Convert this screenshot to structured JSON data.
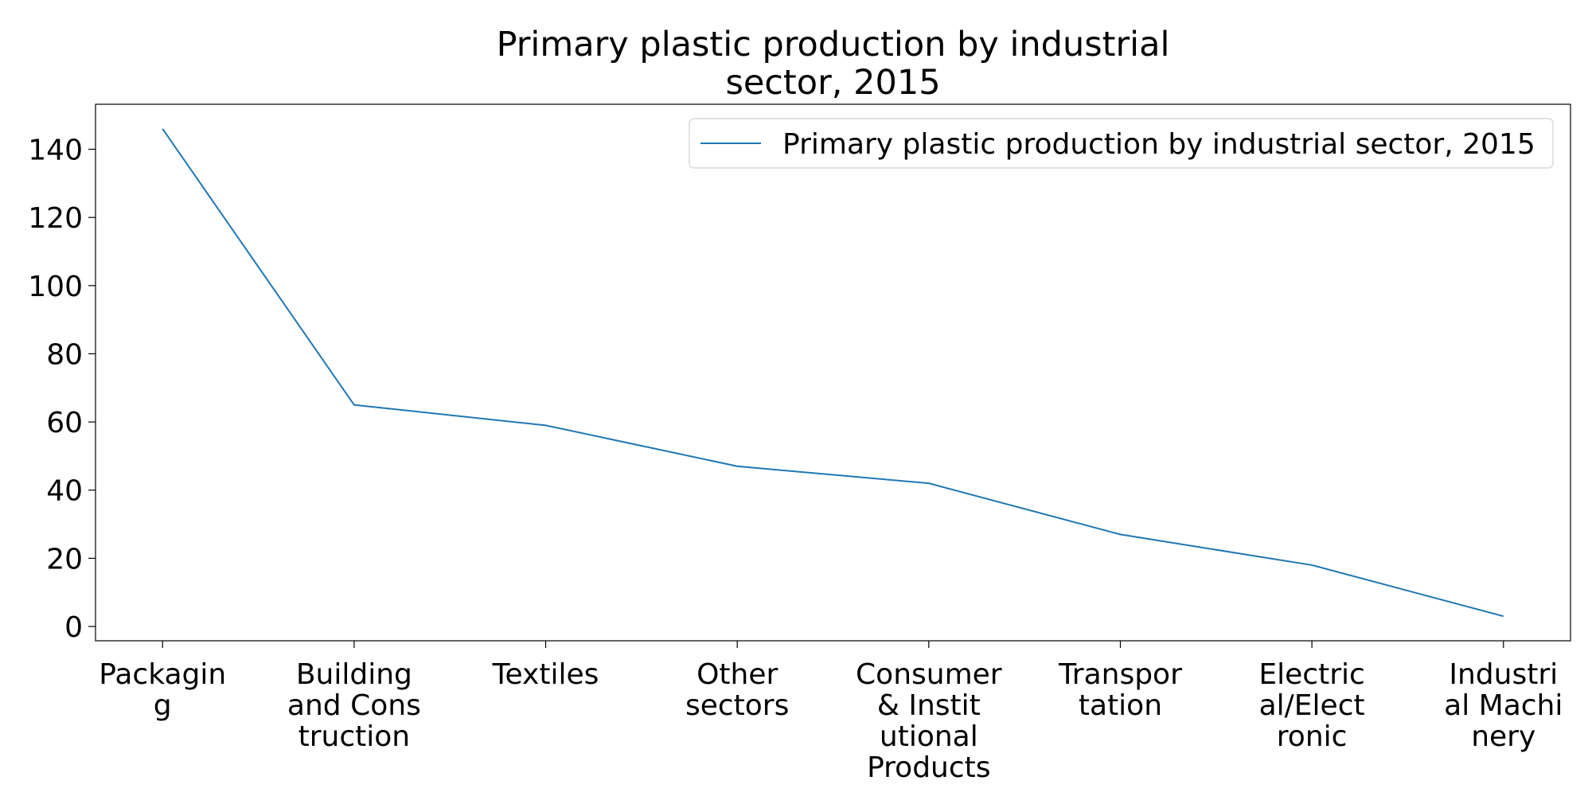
{
  "chart_data": {
    "type": "line",
    "title_lines": [
      "Primary plastic production by industrial",
      "sector, 2015"
    ],
    "xlabel": "",
    "ylabel": "",
    "categories": [
      [
        "Packagin",
        "g"
      ],
      [
        "Building",
        "and Cons",
        "truction"
      ],
      [
        "Textiles"
      ],
      [
        "Other",
        "sectors"
      ],
      [
        "Consumer",
        "& Instit",
        "utional",
        "Products"
      ],
      [
        "Transpor",
        "tation"
      ],
      [
        "Electric",
        "al/Elect",
        "ronic"
      ],
      [
        "Industri",
        "al Machi",
        "nery"
      ]
    ],
    "series": [
      {
        "name": "Primary plastic production by industrial sector, 2015",
        "values": [
          146,
          65,
          59,
          47,
          42,
          27,
          18,
          3
        ],
        "color": "#1f77b4"
      }
    ],
    "ylim": [
      -4.2,
      153.2
    ],
    "yticks": [
      0,
      20,
      40,
      60,
      80,
      100,
      120,
      140
    ],
    "grid": false,
    "legend_position": "upper right"
  }
}
